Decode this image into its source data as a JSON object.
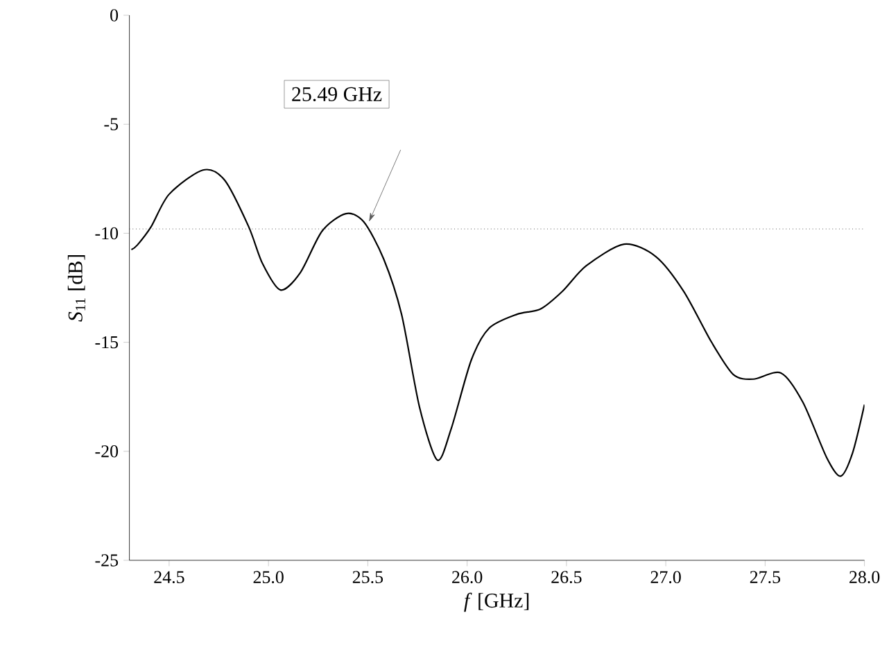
{
  "chart_data": {
    "type": "line",
    "xlabel": "*f* [GHz]",
    "ylabel": "*S*$_{11}$ [dB]",
    "x": [
      24.31,
      24.34,
      24.41,
      24.5,
      24.67,
      24.78,
      24.9,
      24.97,
      25.06,
      25.16,
      25.27,
      25.39,
      25.48,
      25.58,
      25.67,
      25.76,
      25.85,
      25.92,
      26.02,
      26.11,
      26.25,
      26.37,
      26.48,
      26.6,
      26.79,
      26.95,
      27.09,
      27.23,
      27.34,
      27.44,
      27.58,
      27.69,
      27.81,
      27.88,
      27.94,
      28.0
    ],
    "values": [
      -10.75,
      -10.54,
      -9.69,
      -8.21,
      -7.1,
      -7.57,
      -9.69,
      -11.39,
      -12.6,
      -11.81,
      -9.9,
      -9.1,
      -9.48,
      -11.18,
      -13.72,
      -17.96,
      -20.4,
      -18.96,
      -15.84,
      -14.36,
      -13.72,
      -13.47,
      -12.66,
      -11.49,
      -10.5,
      -11.07,
      -12.66,
      -14.99,
      -16.48,
      -16.69,
      -16.41,
      -17.75,
      -20.29,
      -21.14,
      -20.08,
      -17.86
    ],
    "color": "#000000",
    "line_style": "solid",
    "marker": "none",
    "xlim": [
      24.3,
      28.0
    ],
    "ylim": [
      -25,
      0
    ],
    "xticks": [
      24.5,
      {
        "value": 25,
        "label": "25.0"
      },
      25.5,
      {
        "value": 26,
        "label": "26.0"
      },
      26.5,
      {
        "value": 27,
        "label": "27.0"
      },
      27.5,
      {
        "value": 28,
        "label": "28.0"
      }
    ],
    "yticks": [
      -25,
      -20,
      -15,
      -10,
      -5,
      0
    ],
    "ref_lines": [
      {
        "axis": "y",
        "value": -9.8,
        "line_style": "dotted"
      }
    ],
    "annotations": [
      "25.49 GHz"
    ]
  }
}
